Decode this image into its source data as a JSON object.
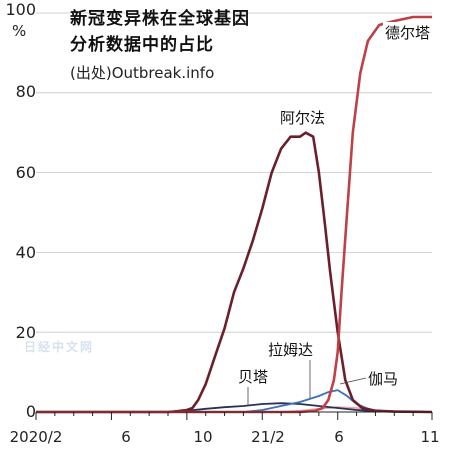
{
  "title_line1": "新冠变异株在全球基因",
  "title_line2": "分析数据中的占比",
  "source": "(出处)Outbreak.info",
  "watermark": "日经中文网",
  "chart_data": {
    "type": "line",
    "title": "新冠变异株在全球基因分析数据中的占比",
    "ylabel_unit": "%",
    "ylim": [
      0,
      100
    ],
    "y_ticks": [
      "0",
      "20",
      "40",
      "60",
      "80",
      "100"
    ],
    "x_ticks": [
      "2020/2",
      "6",
      "10",
      "21/2",
      "6",
      "11"
    ],
    "xlim": [
      0,
      21
    ],
    "x_tick_positions": [
      0,
      4,
      8,
      12,
      16,
      21
    ],
    "series": [
      {
        "name": "阿尔法",
        "color": "#6b1f2a",
        "values": [
          [
            0,
            0
          ],
          [
            1,
            0
          ],
          [
            2,
            0
          ],
          [
            3,
            0
          ],
          [
            4,
            0
          ],
          [
            5,
            0
          ],
          [
            6,
            0
          ],
          [
            7,
            0
          ],
          [
            7.5,
            0.2
          ],
          [
            8,
            0.5
          ],
          [
            8.3,
            1
          ],
          [
            8.6,
            3
          ],
          [
            9,
            7
          ],
          [
            9.5,
            14
          ],
          [
            10,
            21
          ],
          [
            10.5,
            30
          ],
          [
            11,
            36
          ],
          [
            11.5,
            43
          ],
          [
            12,
            51
          ],
          [
            12.5,
            60
          ],
          [
            13,
            66
          ],
          [
            13.5,
            69
          ],
          [
            14,
            69
          ],
          [
            14.3,
            70
          ],
          [
            14.7,
            69
          ],
          [
            15,
            60
          ],
          [
            15.3,
            48
          ],
          [
            15.6,
            35
          ],
          [
            16,
            20
          ],
          [
            16.4,
            8
          ],
          [
            16.8,
            3
          ],
          [
            17.3,
            1
          ],
          [
            18,
            0.3
          ],
          [
            19,
            0.1
          ],
          [
            21,
            0
          ]
        ]
      },
      {
        "name": "德尔塔",
        "color": "#c04048",
        "values": [
          [
            0,
            0
          ],
          [
            14,
            0
          ],
          [
            14.8,
            0.3
          ],
          [
            15.2,
            1
          ],
          [
            15.5,
            3
          ],
          [
            15.8,
            8
          ],
          [
            16,
            15
          ],
          [
            16.2,
            30
          ],
          [
            16.5,
            50
          ],
          [
            16.8,
            70
          ],
          [
            17.2,
            85
          ],
          [
            17.6,
            93
          ],
          [
            18.2,
            97
          ],
          [
            19,
            98
          ],
          [
            20,
            99
          ],
          [
            21,
            99
          ]
        ]
      },
      {
        "name": "伽马",
        "color": "#3b6fb6",
        "values": [
          [
            0,
            0
          ],
          [
            11,
            0
          ],
          [
            12,
            0.5
          ],
          [
            13,
            1.5
          ],
          [
            14,
            2.5
          ],
          [
            15,
            4
          ],
          [
            15.5,
            5
          ],
          [
            16,
            5.5
          ],
          [
            16.5,
            4
          ],
          [
            17,
            2
          ],
          [
            17.5,
            1
          ],
          [
            18,
            0.3
          ],
          [
            19,
            0.1
          ],
          [
            21,
            0
          ]
        ]
      },
      {
        "name": "贝塔",
        "color": "#2a2f58",
        "values": [
          [
            0,
            0
          ],
          [
            7,
            0
          ],
          [
            8,
            0.3
          ],
          [
            9,
            0.8
          ],
          [
            10,
            1.2
          ],
          [
            11,
            1.5
          ],
          [
            12,
            2
          ],
          [
            13,
            2.2
          ],
          [
            14,
            2
          ],
          [
            15,
            1.5
          ],
          [
            16,
            1
          ],
          [
            17,
            0.5
          ],
          [
            18,
            0.2
          ],
          [
            21,
            0
          ]
        ]
      },
      {
        "name": "拉姆达",
        "color": "#e8a8a8",
        "values": [
          [
            0,
            0
          ],
          [
            13,
            0
          ],
          [
            14,
            0.3
          ],
          [
            15,
            0.8
          ],
          [
            16,
            1.2
          ],
          [
            17,
            1
          ],
          [
            18,
            0.5
          ],
          [
            19,
            0.2
          ],
          [
            21,
            0
          ]
        ]
      }
    ]
  }
}
